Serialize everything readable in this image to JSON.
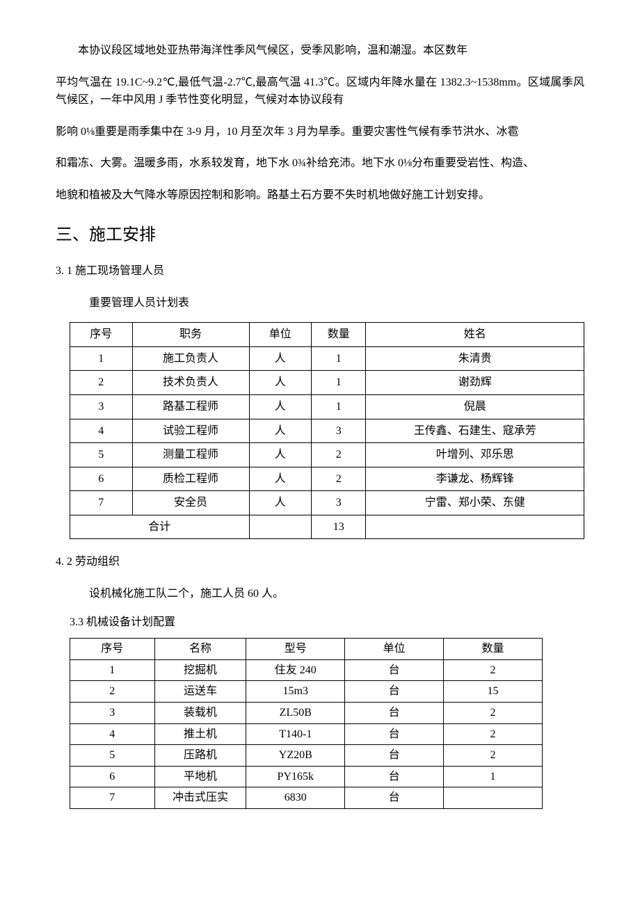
{
  "para1": "本协议段区域地处亚热带海洋性季风气候区，受季风影响，温和潮湿。本区数年",
  "para2": "平均气温在 19.1C~9.2℃,最低气温-2.7℃,最高气温 41.3℃。区域内年降水量在 1382.3~1538mm。区域属季风气候区，一年中风用 J 季节性变化明显，气候对本协议段有",
  "para3": "影响 0⅛重要是雨季集中在 3-9 月，10 月至次年 3 月为旱季。重要灾害性气候有季节洪水、冰雹",
  "para4": "和霜冻、大雾。温暖多雨，水系较发育，地下水 0¾补给充沛。地下水 0⅛分布重要受岩性、构造、",
  "para5": "地貌和植被及大气降水等原因控制和影响。路基土石方要不失时机地做好施工计划安排。",
  "heading1": "三、施工安排",
  "sec31_title": "3.  1 施工现场管理人员",
  "table1_caption": "重要管理人员计划表",
  "table1": {
    "headers": [
      "序号",
      "职务",
      "单位",
      "数量",
      "姓名"
    ],
    "rows": [
      [
        "1",
        "施工负责人",
        "人",
        "1",
        "朱清贵"
      ],
      [
        "2",
        "技术负责人",
        "人",
        "1",
        "谢劲辉"
      ],
      [
        "3",
        "路基工程师",
        "人",
        "1",
        "倪晨"
      ],
      [
        "4",
        "试验工程师",
        "人",
        "3",
        "王传鑫、石建生、寇承芳"
      ],
      [
        "5",
        "测量工程师",
        "人",
        "2",
        "叶增列、邓乐思"
      ],
      [
        "6",
        "质检工程师",
        "人",
        "2",
        "李谦龙、杨辉锋"
      ],
      [
        "7",
        "安全员",
        "人",
        "3",
        "宁雷、郑小荣、东健"
      ]
    ],
    "total_label": "合计",
    "total_qty": "13"
  },
  "sec42_title": "4.  2 劳动组织",
  "sec42_body": "设机械化施工队二个，施工人员 60 人。",
  "sec33_title": "3.3 机械设备计划配置",
  "table2": {
    "headers": [
      "序号",
      "名称",
      "型号",
      "单位",
      "数量"
    ],
    "rows": [
      [
        "1",
        "挖掘机",
        "住友 240",
        "台",
        "2"
      ],
      [
        "2",
        "运送车",
        "15m3",
        "台",
        "15"
      ],
      [
        "3",
        "装载机",
        "ZL50B",
        "台",
        "2"
      ],
      [
        "4",
        "推土机",
        "T140-1",
        "台",
        "2"
      ],
      [
        "5",
        "压路机",
        "YZ20B",
        "台",
        "2"
      ],
      [
        "6",
        "平地机",
        "PY165k",
        "台",
        "1"
      ],
      [
        "7",
        "冲击式压实",
        "6830",
        "台",
        ""
      ]
    ]
  }
}
